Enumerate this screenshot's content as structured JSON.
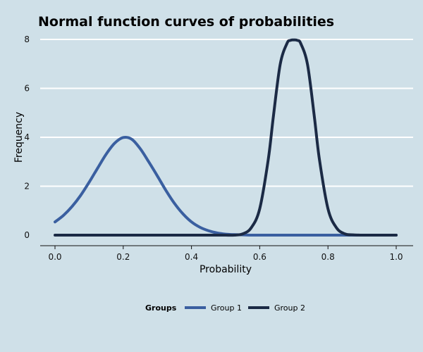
{
  "chart_data": {
    "type": "line",
    "title": "Normal function curves of probabilities",
    "xlabel": "Probability",
    "ylabel": "Frequency",
    "xlim": [
      0,
      1
    ],
    "ylim": [
      0,
      8
    ],
    "x_ticks": [
      "0.0",
      "0.2",
      "0.4",
      "0.6",
      "0.8",
      "1.0"
    ],
    "y_ticks": [
      "0",
      "2",
      "4",
      "6",
      "8"
    ],
    "grid": "horizontal",
    "legend": {
      "title": "Groups",
      "position": "bottom"
    },
    "x": [
      0.0,
      0.025,
      0.05,
      0.075,
      0.1,
      0.125,
      0.15,
      0.175,
      0.2,
      0.225,
      0.25,
      0.275,
      0.3,
      0.325,
      0.35,
      0.375,
      0.4,
      0.425,
      0.45,
      0.475,
      0.5,
      0.525,
      0.55,
      0.575,
      0.6,
      0.625,
      0.64,
      0.66,
      0.68,
      0.69,
      0.7,
      0.71,
      0.72,
      0.74,
      0.76,
      0.775,
      0.8,
      0.825,
      0.85,
      0.875,
      0.9,
      0.925,
      0.95,
      0.975,
      1.0
    ],
    "series": [
      {
        "name": "Group 1",
        "color": "#3a5fa0",
        "values": [
          0.54,
          0.81,
          1.17,
          1.62,
          2.16,
          2.74,
          3.31,
          3.76,
          3.99,
          3.92,
          3.53,
          2.99,
          2.42,
          1.83,
          1.3,
          0.87,
          0.54,
          0.32,
          0.18,
          0.09,
          0.04,
          0.02,
          0.01,
          0.0,
          0.0,
          0.0,
          0.0,
          0.0,
          0.0,
          0.0,
          0.0,
          0.0,
          0.0,
          0.0,
          0.0,
          0.0,
          0.0,
          0.0,
          0.0,
          0.0,
          0.0,
          0.0,
          0.0,
          0.0,
          0.0
        ]
      },
      {
        "name": "Group 2",
        "color": "#1b2a45",
        "values": [
          0.0,
          0.0,
          0.0,
          0.0,
          0.0,
          0.0,
          0.0,
          0.0,
          0.0,
          0.0,
          0.0,
          0.0,
          0.0,
          0.0,
          0.0,
          0.0,
          0.0,
          0.0,
          0.0,
          0.0,
          0.0,
          0.0,
          0.05,
          0.3,
          1.08,
          3.09,
          4.85,
          6.98,
          7.84,
          7.96,
          7.98,
          7.96,
          7.84,
          6.98,
          4.85,
          3.09,
          1.08,
          0.3,
          0.05,
          0.01,
          0.0,
          0.0,
          0.0,
          0.0,
          0.0
        ]
      }
    ]
  }
}
